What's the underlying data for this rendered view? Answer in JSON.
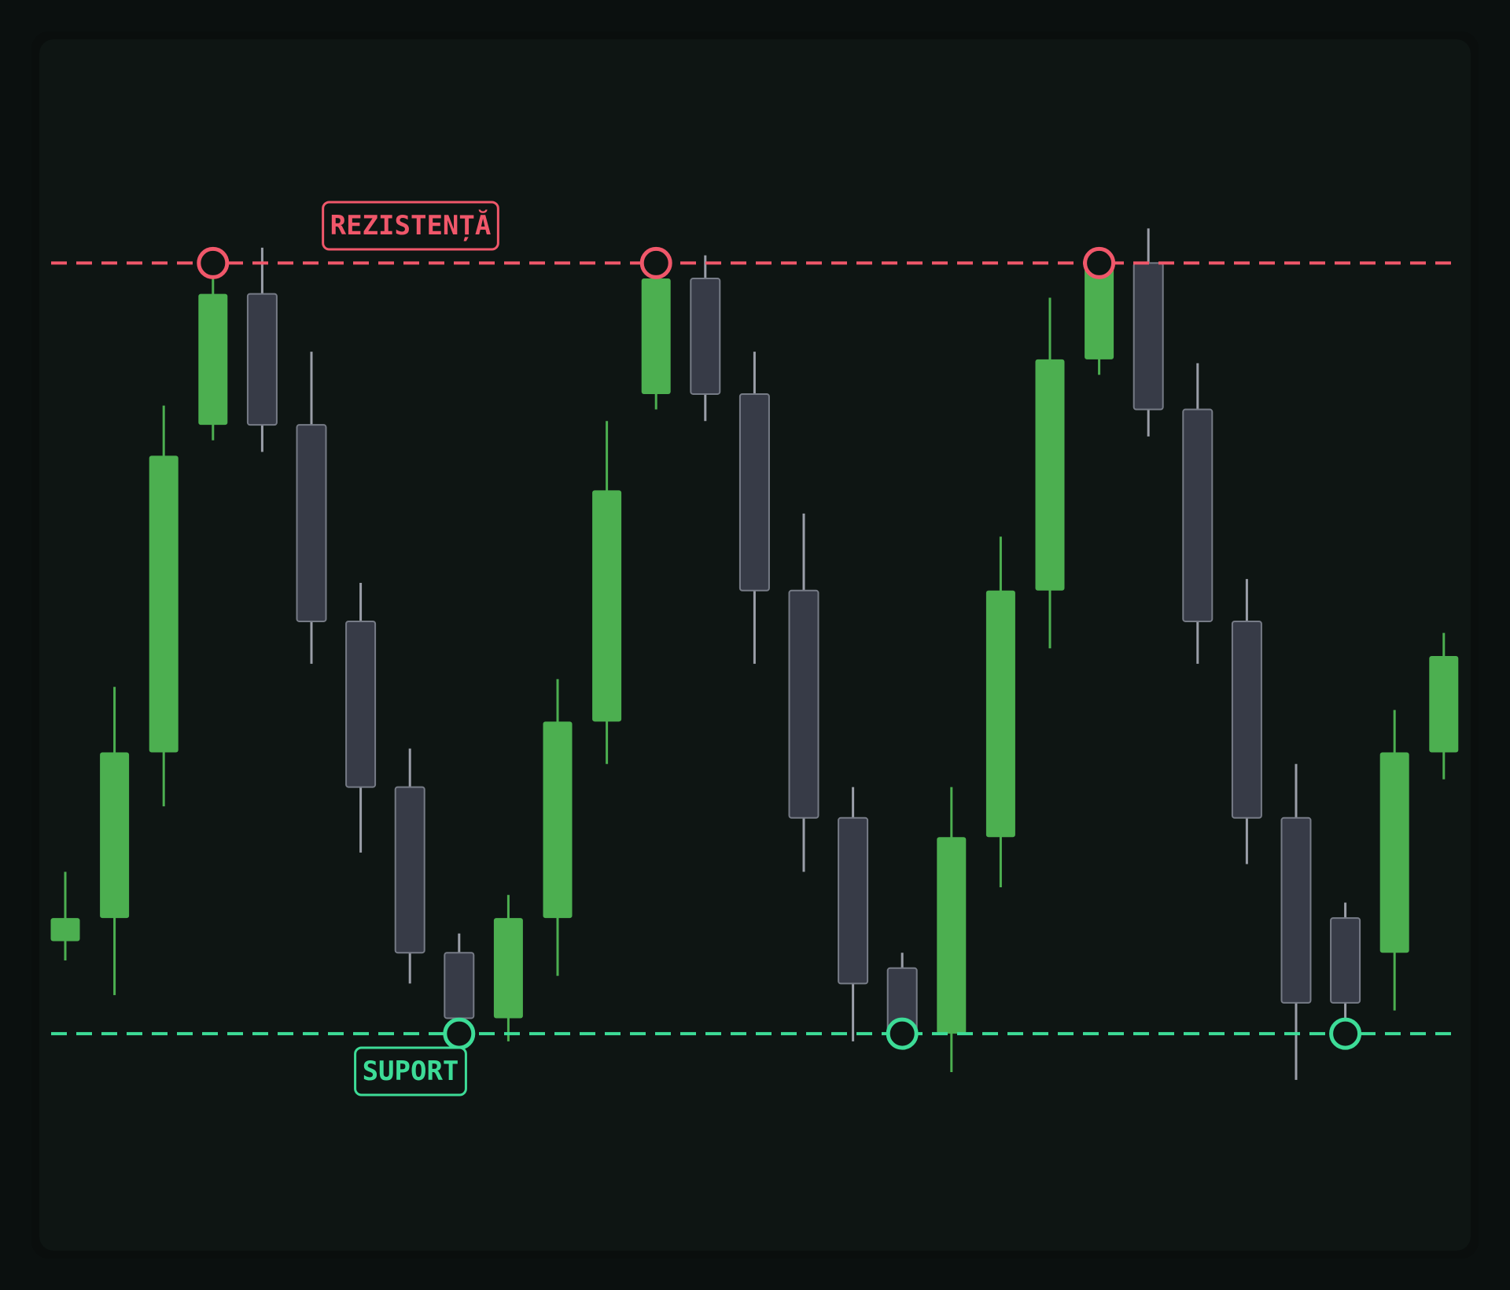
{
  "chart_data": {
    "type": "candlestick",
    "open": [
      112,
      115,
      136.5,
      179,
      196,
      179,
      153.5,
      132,
      110.5,
      102,
      115,
      140.5,
      183,
      198,
      183,
      157.5,
      128,
      108.5,
      100,
      125.5,
      157.5,
      187.5,
      200,
      181,
      153.5,
      128,
      115,
      110.5,
      136.5
    ],
    "high": [
      121,
      145,
      181.5,
      200,
      202,
      188.5,
      158.5,
      137,
      113,
      118,
      146,
      179.5,
      200,
      201,
      188.5,
      167.5,
      132,
      110.5,
      132,
      164.5,
      195.5,
      200,
      204.5,
      187,
      159,
      135,
      117,
      142,
      152
    ],
    "low": [
      109.5,
      105,
      129.5,
      177,
      175.5,
      148,
      123.5,
      106.5,
      100,
      99,
      107.5,
      135,
      181,
      179.5,
      148,
      121,
      99,
      100,
      95,
      119,
      150,
      185.5,
      177.5,
      148,
      122,
      94,
      100,
      103,
      133
    ],
    "close": [
      115,
      136.5,
      175,
      196,
      179,
      153.5,
      132,
      110.5,
      102,
      115,
      140.5,
      170.5,
      198,
      183,
      157.5,
      128,
      106.5,
      100,
      125.5,
      157.5,
      187.5,
      200,
      181,
      153.5,
      128,
      104,
      104,
      136.5,
      149
    ],
    "up_color": "#4caf50",
    "down_color": "#373b47",
    "levels": [
      {
        "name": "REZISTENȚĂ",
        "value": 200,
        "color": "#f0576a",
        "touch": "high"
      },
      {
        "name": "SUPORT",
        "value": 100,
        "color": "#3ddc97",
        "touch": "low"
      }
    ],
    "ylim": [
      80,
      220
    ]
  }
}
